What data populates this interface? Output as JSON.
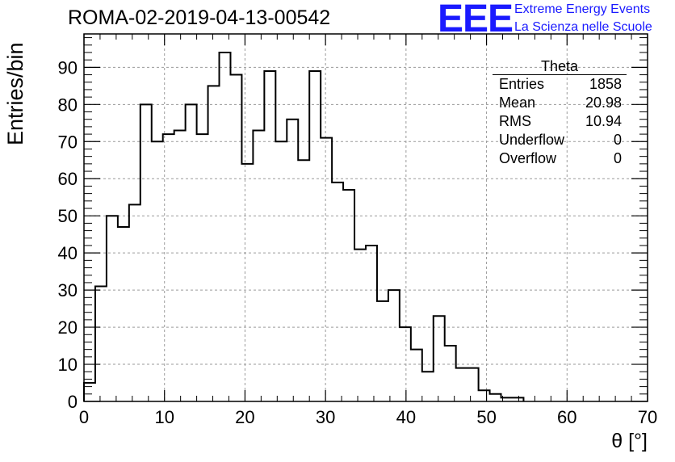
{
  "header": {
    "title": "ROMA-02-2019-04-13-00542",
    "logo_text": "EEE",
    "logo_line1": "Extreme Energy Events",
    "logo_line2": "La Scienza nelle Scuole"
  },
  "stats_box": {
    "name": "Theta",
    "rows": [
      {
        "label": "Entries",
        "value": "1858"
      },
      {
        "label": "Mean",
        "value": "20.98"
      },
      {
        "label": "RMS",
        "value": "10.94"
      },
      {
        "label": "Underflow",
        "value": "0"
      },
      {
        "label": "Overflow",
        "value": "0"
      }
    ]
  },
  "colors": {
    "logo": "#1a1aff",
    "line": "#000000",
    "grid": "#9a9a9a"
  },
  "chart_data": {
    "type": "histogram",
    "title": "ROMA-02-2019-04-13-00542",
    "xlabel": "θ [°]",
    "ylabel": "Entries/bin",
    "xlim": [
      0,
      70
    ],
    "ylim": [
      0,
      99
    ],
    "x_ticks": [
      0,
      10,
      20,
      30,
      40,
      50,
      60,
      70
    ],
    "y_ticks": [
      0,
      10,
      20,
      30,
      40,
      50,
      60,
      70,
      80,
      90
    ],
    "grid": true,
    "bin_width": 1.4,
    "bin_start": 0,
    "values": [
      5,
      31,
      50,
      47,
      53,
      80,
      70,
      72,
      73,
      80,
      72,
      85,
      94,
      88,
      64,
      73,
      89,
      70,
      76,
      65,
      89,
      71,
      59,
      57,
      41,
      42,
      27,
      30,
      20,
      14,
      8,
      23,
      15,
      9,
      9,
      3,
      2,
      1,
      1,
      0
    ]
  }
}
